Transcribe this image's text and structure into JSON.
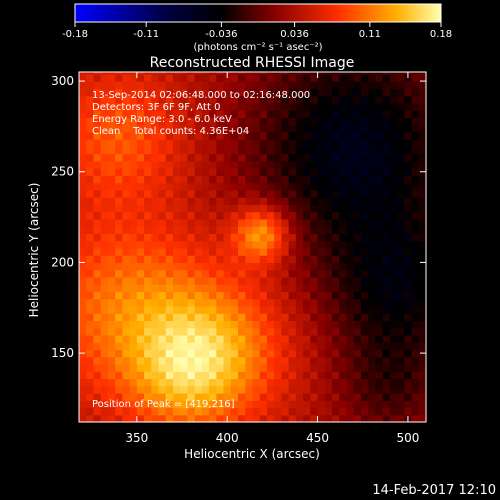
{
  "colorbar": {
    "ticks": [
      "-0.18",
      "-0.11",
      "-0.036",
      "0.036",
      "0.11",
      "0.18"
    ],
    "tick_values": [
      -0.18,
      -0.11,
      -0.036,
      0.036,
      0.11,
      0.18
    ],
    "units": "(photons cm⁻² s⁻¹ asec⁻²)",
    "range": [
      -0.18,
      0.18
    ],
    "colormap": [
      "#0000ff",
      "#000040",
      "#000000",
      "#8b0000",
      "#ff3000",
      "#ffb000",
      "#ffffb0"
    ]
  },
  "chart_data": {
    "type": "heatmap",
    "title": "Reconstructed RHESSI Image",
    "xlabel": "Heliocentric X (arcsec)",
    "ylabel": "Heliocentric Y (arcsec)",
    "xlim": [
      318,
      510
    ],
    "ylim": [
      112,
      305
    ],
    "xticks": [
      350,
      400,
      450,
      500
    ],
    "yticks": [
      150,
      200,
      250,
      300
    ],
    "annotations": [
      "13-Sep-2014 02:06:48.000 to 02:16:48.000",
      "Detectors: 3F 6F 9F, Att 0",
      "Energy Range: 3.0 - 6.0 keV",
      "Clean    Total counts: 4.36E+04"
    ],
    "peak_label": "Position of Peak = [419,216]",
    "peak": [
      419,
      216
    ],
    "sources": [
      {
        "x": 419,
        "y": 216,
        "sigma": 11,
        "amp": 0.1
      },
      {
        "x": 395,
        "y": 152,
        "sigma": 28,
        "amp": 0.08
      },
      {
        "x": 345,
        "y": 175,
        "sigma": 35,
        "amp": 0.075
      },
      {
        "x": 340,
        "y": 270,
        "sigma": 26,
        "amp": 0.06
      },
      {
        "x": 375,
        "y": 135,
        "sigma": 22,
        "amp": 0.05
      },
      {
        "x": 470,
        "y": 265,
        "sigma": 40,
        "amp": -0.09
      },
      {
        "x": 495,
        "y": 185,
        "sigma": 30,
        "amp": -0.07
      },
      {
        "x": 490,
        "y": 130,
        "sigma": 20,
        "amp": -0.04
      }
    ]
  },
  "footer": {
    "date": "14-Feb-2017 12:10"
  }
}
